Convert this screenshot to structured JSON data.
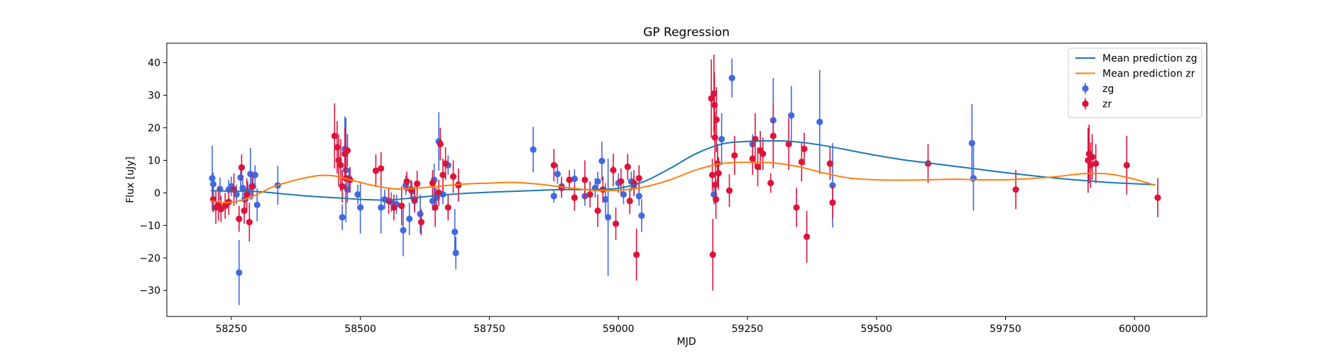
{
  "chart_data": {
    "type": "scatter",
    "title": "GP Regression",
    "xlabel": "MJD",
    "ylabel": "Flux [uJy]",
    "xlim": [
      58125,
      60140
    ],
    "ylim": [
      -38,
      46
    ],
    "xticks": [
      58250,
      58500,
      58750,
      59000,
      59250,
      59500,
      59750,
      60000
    ],
    "yticks": [
      -30,
      -20,
      -10,
      0,
      10,
      20,
      30,
      40
    ],
    "grid": false,
    "legend_position": "top-right",
    "series": [
      {
        "name": "Mean prediction zg",
        "kind": "line",
        "color": "#1f77b4",
        "x": [
          58210,
          58250,
          58300,
          58350,
          58400,
          58450,
          58500,
          58550,
          58600,
          58650,
          58700,
          58750,
          58800,
          58850,
          58900,
          58950,
          59000,
          59050,
          59100,
          59150,
          59200,
          59250,
          59300,
          59350,
          59400,
          59450,
          59500,
          59550,
          59600,
          59650,
          59700,
          59750,
          59800,
          59850,
          59900,
          59950,
          60000,
          60040
        ],
        "y": [
          0.7,
          0.5,
          0.4,
          -0.3,
          -1.0,
          -1.5,
          -2.0,
          -2.2,
          -1.6,
          -0.8,
          -0.2,
          0.2,
          0.5,
          0.8,
          1.0,
          1.0,
          1.4,
          3.5,
          7.5,
          12.0,
          15.0,
          15.8,
          16.0,
          15.6,
          14.5,
          13.0,
          11.5,
          10.2,
          9.2,
          8.2,
          7.2,
          6.2,
          5.3,
          4.5,
          3.8,
          3.2,
          2.8,
          2.5
        ]
      },
      {
        "name": "Mean prediction zr",
        "kind": "line",
        "color": "#ff7f0e",
        "x": [
          58210,
          58240,
          58270,
          58300,
          58330,
          58360,
          58390,
          58420,
          58450,
          58480,
          58510,
          58540,
          58570,
          58600,
          58650,
          58700,
          58750,
          58800,
          58850,
          58900,
          58950,
          59000,
          59050,
          59100,
          59150,
          59200,
          59250,
          59300,
          59350,
          59400,
          59450,
          59500,
          59550,
          59600,
          59650,
          59700,
          59750,
          59800,
          59850,
          59900,
          59950,
          60000,
          60040
        ],
        "y": [
          -2.5,
          -3.0,
          -2.3,
          -0.5,
          1.8,
          3.3,
          4.5,
          5.3,
          5.2,
          4.0,
          2.8,
          1.8,
          1.2,
          1.3,
          2.0,
          2.7,
          3.0,
          3.2,
          2.6,
          1.6,
          0.8,
          0.8,
          1.8,
          4.0,
          7.0,
          9.0,
          9.4,
          9.2,
          8.0,
          6.0,
          4.5,
          4.0,
          3.9,
          4.0,
          4.2,
          4.0,
          4.0,
          4.4,
          5.0,
          5.9,
          5.8,
          4.2,
          2.3
        ]
      },
      {
        "name": "zg",
        "kind": "errorbar",
        "color": "#4169e1",
        "points": [
          [
            58213,
            4.5,
            10
          ],
          [
            58215,
            2.7,
            3.5
          ],
          [
            58228,
            1.2,
            3.5
          ],
          [
            58245,
            1.0,
            3
          ],
          [
            58250,
            2.0,
            3
          ],
          [
            58260,
            -0.5,
            3
          ],
          [
            58265,
            -24.5,
            10
          ],
          [
            58268,
            4.7,
            4
          ],
          [
            58272,
            1.5,
            3
          ],
          [
            58276,
            -2,
            3
          ],
          [
            58282,
            0.5,
            3
          ],
          [
            58287,
            5.8,
            8
          ],
          [
            58292,
            2,
            3
          ],
          [
            58296,
            5.5,
            3
          ],
          [
            58300,
            -3.7,
            5
          ],
          [
            58340,
            2.3,
            6
          ],
          [
            58465,
            -7.5,
            4
          ],
          [
            58470,
            13.5,
            10
          ],
          [
            58472,
            7,
            16
          ],
          [
            58475,
            1.0,
            4
          ],
          [
            58478,
            4.5,
            3
          ],
          [
            58495,
            -0.5,
            3
          ],
          [
            58500,
            -4.5,
            8
          ],
          [
            58540,
            -4.5,
            8
          ],
          [
            58547,
            -2,
            3
          ],
          [
            58560,
            -2.8,
            3
          ],
          [
            58570,
            -3.5,
            3
          ],
          [
            58583,
            -11.5,
            8
          ],
          [
            58588,
            2.3,
            3
          ],
          [
            58595,
            -8.0,
            5
          ],
          [
            58600,
            0.5,
            3
          ],
          [
            58605,
            -2.5,
            3
          ],
          [
            58616,
            -6.5,
            6
          ],
          [
            58640,
            -2.5,
            3
          ],
          [
            58643,
            4.0,
            5
          ],
          [
            58648,
            -1.5,
            3
          ],
          [
            58652,
            15.8,
            9
          ],
          [
            58660,
            -0.5,
            3
          ],
          [
            58670,
            8.5,
            3
          ],
          [
            58683,
            -12,
            7
          ],
          [
            58685,
            -18.5,
            5
          ],
          [
            58690,
            2.3,
            5
          ],
          [
            58835,
            13.3,
            7
          ],
          [
            58875,
            -1,
            2
          ],
          [
            58882,
            5.8,
            3
          ],
          [
            58890,
            2.0,
            3
          ],
          [
            58915,
            4.3,
            3
          ],
          [
            58935,
            -1.0,
            3
          ],
          [
            58955,
            1.5,
            3
          ],
          [
            58960,
            3.5,
            3
          ],
          [
            58968,
            9.8,
            6
          ],
          [
            58975,
            -2,
            5
          ],
          [
            58980,
            -7.5,
            18
          ],
          [
            59000,
            3.0,
            3
          ],
          [
            59010,
            -0.5,
            3
          ],
          [
            59025,
            3.5,
            3
          ],
          [
            59030,
            2.2,
            3
          ],
          [
            59040,
            -1,
            3
          ],
          [
            59045,
            -7.0,
            5
          ],
          [
            59185,
            -0.5,
            3
          ],
          [
            59200,
            16.5,
            8
          ],
          [
            59220,
            35.3,
            6
          ],
          [
            59260,
            15.0,
            3
          ],
          [
            59300,
            22.3,
            13
          ],
          [
            59335,
            23.8,
            9
          ],
          [
            59390,
            21.8,
            16
          ],
          [
            59415,
            2.3,
            13
          ],
          [
            59685,
            15.3,
            12
          ],
          [
            59688,
            4.5,
            10
          ]
        ]
      },
      {
        "name": "zr",
        "kind": "errorbar",
        "color": "#dc143c",
        "points": [
          [
            58215,
            -2,
            4
          ],
          [
            58220,
            -4.5,
            5
          ],
          [
            58225,
            -3.5,
            5
          ],
          [
            58230,
            -5,
            4
          ],
          [
            58238,
            -4,
            4
          ],
          [
            58245,
            -2.8,
            4
          ],
          [
            58255,
            1.0,
            5
          ],
          [
            58265,
            -8,
            4
          ],
          [
            58270,
            7.8,
            4
          ],
          [
            58275,
            -5.5,
            4
          ],
          [
            58280,
            -0.5,
            5
          ],
          [
            58285,
            -9,
            6
          ],
          [
            58290,
            2,
            4
          ],
          [
            58450,
            17.5,
            10
          ],
          [
            58455,
            14,
            8
          ],
          [
            58458,
            10,
            8
          ],
          [
            58462,
            8.5,
            8
          ],
          [
            58465,
            2,
            5
          ],
          [
            58470,
            12,
            8
          ],
          [
            58472,
            4.5,
            8
          ],
          [
            58475,
            13,
            5
          ],
          [
            58480,
            4,
            4
          ],
          [
            58530,
            6.8,
            5
          ],
          [
            58540,
            7.5,
            5
          ],
          [
            58555,
            -2.5,
            4
          ],
          [
            58565,
            -4.5,
            4
          ],
          [
            58580,
            -4.0,
            6
          ],
          [
            58590,
            3.5,
            3
          ],
          [
            58598,
            1.0,
            3
          ],
          [
            58605,
            -2,
            4
          ],
          [
            58610,
            2.8,
            4
          ],
          [
            58618,
            -9,
            4
          ],
          [
            58640,
            3,
            4
          ],
          [
            58645,
            -4.5,
            6
          ],
          [
            58652,
            0,
            4
          ],
          [
            58655,
            15,
            5
          ],
          [
            58660,
            5.5,
            5
          ],
          [
            58665,
            9,
            5
          ],
          [
            58670,
            -4.5,
            4
          ],
          [
            58680,
            5,
            5
          ],
          [
            58690,
            2.5,
            5
          ],
          [
            58875,
            8.5,
            5
          ],
          [
            58890,
            1.5,
            3
          ],
          [
            58905,
            4,
            3
          ],
          [
            58915,
            -1.5,
            4
          ],
          [
            58935,
            4,
            6
          ],
          [
            58945,
            -0.5,
            4
          ],
          [
            58960,
            -5.5,
            5
          ],
          [
            58970,
            1,
            4
          ],
          [
            58990,
            7,
            5
          ],
          [
            58995,
            -9.5,
            5
          ],
          [
            59005,
            3.5,
            4
          ],
          [
            59018,
            8,
            4
          ],
          [
            59022,
            -2.5,
            4
          ],
          [
            59030,
            3,
            4
          ],
          [
            59035,
            -19,
            8
          ],
          [
            59040,
            4.5,
            4
          ],
          [
            59180,
            29,
            12
          ],
          [
            59182,
            5.5,
            5
          ],
          [
            59183,
            -19,
            11
          ],
          [
            59185,
            30.5,
            12
          ],
          [
            59186,
            27,
            10
          ],
          [
            59187,
            17,
            8
          ],
          [
            59188,
            2.5,
            6
          ],
          [
            59189,
            -2,
            6
          ],
          [
            59190,
            22.5,
            10
          ],
          [
            59192,
            9,
            6
          ],
          [
            59194,
            6,
            5
          ],
          [
            59215,
            0.7,
            5
          ],
          [
            59225,
            11.5,
            6
          ],
          [
            59260,
            10.5,
            5
          ],
          [
            59265,
            16.5,
            8
          ],
          [
            59270,
            8,
            6
          ],
          [
            59275,
            13,
            6
          ],
          [
            59280,
            12,
            5
          ],
          [
            59295,
            3,
            3
          ],
          [
            59300,
            17.5,
            10
          ],
          [
            59330,
            15,
            8
          ],
          [
            59345,
            -4.5,
            6
          ],
          [
            59355,
            9.5,
            6
          ],
          [
            59360,
            13.5,
            5
          ],
          [
            59365,
            -13.5,
            8
          ],
          [
            59410,
            9,
            5
          ],
          [
            59415,
            -3,
            5
          ],
          [
            59600,
            9,
            6
          ],
          [
            59770,
            1,
            6
          ],
          [
            59910,
            10,
            10
          ],
          [
            59912,
            12,
            9
          ],
          [
            59915,
            8.5,
            7
          ],
          [
            59918,
            11,
            7
          ],
          [
            59925,
            9,
            6
          ],
          [
            59985,
            8.5,
            9
          ],
          [
            60045,
            -1.5,
            6
          ]
        ]
      }
    ]
  }
}
